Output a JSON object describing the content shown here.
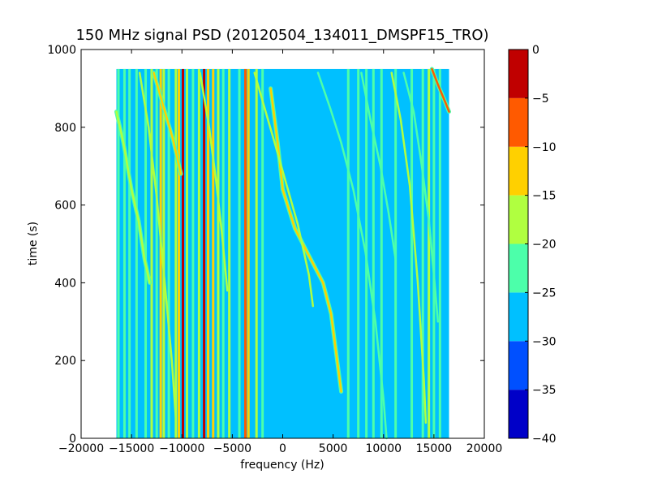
{
  "chart_data": {
    "type": "heatmap",
    "title": "150 MHz signal PSD (20120504_134011_DMSPF15_TRO)",
    "xlabel": "frequency (Hz)",
    "ylabel": "time (s)",
    "xlim": [
      -20000,
      20000
    ],
    "ylim": [
      0,
      1000
    ],
    "xticks": [
      -20000,
      -15000,
      -10000,
      -5000,
      0,
      5000,
      10000,
      15000,
      20000
    ],
    "xtick_labels": [
      "−20000",
      "−15000",
      "−10000",
      "−5000",
      "0",
      "5000",
      "10000",
      "15000",
      "20000"
    ],
    "yticks": [
      0,
      200,
      400,
      600,
      800,
      1000
    ],
    "ytick_labels": [
      "0",
      "200",
      "400",
      "600",
      "800",
      "1000"
    ],
    "data_extent": {
      "x": [
        -16500,
        16500
      ],
      "y": [
        0,
        950
      ]
    },
    "background_level": -28,
    "colorbar": {
      "range": [
        -40,
        0
      ],
      "levels": [
        -40,
        -35,
        -30,
        -25,
        -20,
        -15,
        -10,
        -5,
        0
      ],
      "tick_labels": [
        "−40",
        "−35",
        "−30",
        "−25",
        "−20",
        "−15",
        "−10",
        "−5",
        "0"
      ],
      "colors": [
        "#0000c8",
        "#0050ff",
        "#00c0ff",
        "#4cffaa",
        "#b0ff40",
        "#ffd000",
        "#ff5a00",
        "#c00000"
      ]
    },
    "vertical_lines": [
      {
        "x": -16300,
        "level": -22
      },
      {
        "x": -15700,
        "level": -22
      },
      {
        "x": -15200,
        "level": -22
      },
      {
        "x": -14500,
        "level": -21
      },
      {
        "x": -13600,
        "level": -22
      },
      {
        "x": -13000,
        "level": -20
      },
      {
        "x": -12500,
        "level": -22
      },
      {
        "x": -12100,
        "level": -12
      },
      {
        "x": -11800,
        "level": -20
      },
      {
        "x": -11300,
        "level": -22
      },
      {
        "x": -10600,
        "level": -18
      },
      {
        "x": -10300,
        "level": -12
      },
      {
        "x": -9900,
        "level": -2
      },
      {
        "x": -9500,
        "level": -20
      },
      {
        "x": -8900,
        "level": -22
      },
      {
        "x": -8300,
        "level": -20
      },
      {
        "x": -7800,
        "level": -4
      },
      {
        "x": -7400,
        "level": -14
      },
      {
        "x": -6900,
        "level": -12
      },
      {
        "x": -6400,
        "level": -20
      },
      {
        "x": -5900,
        "level": -22
      },
      {
        "x": -5300,
        "level": -20
      },
      {
        "x": -4300,
        "level": -21
      },
      {
        "x": -3700,
        "level": -8
      },
      {
        "x": -3400,
        "level": -14
      },
      {
        "x": -2600,
        "level": -20
      },
      {
        "x": -2000,
        "level": -22
      },
      {
        "x": 6500,
        "level": -22
      },
      {
        "x": 7500,
        "level": -22
      },
      {
        "x": 8300,
        "level": -23
      },
      {
        "x": 9000,
        "level": -22
      },
      {
        "x": 9800,
        "level": -23
      },
      {
        "x": 11200,
        "level": -22
      },
      {
        "x": 12800,
        "level": -21
      },
      {
        "x": 13900,
        "level": -22
      },
      {
        "x": 14500,
        "level": -20
      },
      {
        "x": 15000,
        "level": -22
      },
      {
        "x": 15600,
        "level": -23
      }
    ],
    "curves": [
      {
        "name": "",
        "level": -12,
        "points": [
          [
            -1200,
            900
          ],
          [
            -500,
            760
          ],
          [
            0,
            640
          ],
          [
            1200,
            540
          ],
          [
            2800,
            460
          ],
          [
            4000,
            400
          ],
          [
            4800,
            320
          ],
          [
            5400,
            200
          ],
          [
            5800,
            120
          ]
        ]
      },
      {
        "name": "",
        "level": -20,
        "points": [
          [
            -2800,
            940
          ],
          [
            -1800,
            850
          ],
          [
            -800,
            760
          ],
          [
            400,
            650
          ],
          [
            1500,
            550
          ],
          [
            2600,
            420
          ],
          [
            3000,
            340
          ]
        ]
      },
      {
        "name": "",
        "level": -22,
        "points": [
          [
            3500,
            940
          ],
          [
            4700,
            850
          ],
          [
            5800,
            760
          ],
          [
            7000,
            640
          ],
          [
            8200,
            480
          ],
          [
            9200,
            300
          ],
          [
            10000,
            100
          ],
          [
            10300,
            0
          ]
        ]
      },
      {
        "name": "",
        "level": -18,
        "points": [
          [
            -16500,
            840
          ],
          [
            -15800,
            760
          ],
          [
            -15000,
            640
          ],
          [
            -14300,
            560
          ],
          [
            -13700,
            460
          ],
          [
            -13200,
            400
          ]
        ]
      },
      {
        "name": "",
        "level": -20,
        "points": [
          [
            -14200,
            940
          ],
          [
            -13300,
            800
          ],
          [
            -12500,
            620
          ],
          [
            -11700,
            400
          ],
          [
            -11000,
            200
          ],
          [
            -10600,
            50
          ]
        ]
      },
      {
        "name": "",
        "level": -14,
        "points": [
          [
            -12800,
            940
          ],
          [
            -11900,
            860
          ],
          [
            -10900,
            770
          ],
          [
            -10100,
            680
          ]
        ]
      },
      {
        "name": "",
        "level": -20,
        "points": [
          [
            -8200,
            940
          ],
          [
            -7300,
            800
          ],
          [
            -6600,
            660
          ],
          [
            -6000,
            520
          ],
          [
            -5500,
            380
          ]
        ]
      },
      {
        "name": "",
        "level": -20,
        "points": [
          [
            10800,
            940
          ],
          [
            11700,
            820
          ],
          [
            12600,
            650
          ],
          [
            13400,
            400
          ],
          [
            14000,
            150
          ],
          [
            14200,
            40
          ]
        ]
      },
      {
        "name": "",
        "level": -22,
        "points": [
          [
            12000,
            940
          ],
          [
            13000,
            840
          ],
          [
            13800,
            700
          ],
          [
            14500,
            560
          ],
          [
            15000,
            420
          ],
          [
            15400,
            300
          ]
        ]
      },
      {
        "name": "",
        "level": -10,
        "points": [
          [
            14800,
            950
          ],
          [
            15400,
            910
          ],
          [
            16200,
            860
          ],
          [
            16500,
            840
          ]
        ]
      },
      {
        "name": "",
        "level": -24,
        "points": [
          [
            7800,
            940
          ],
          [
            8700,
            820
          ],
          [
            9700,
            700
          ],
          [
            10500,
            580
          ],
          [
            11200,
            460
          ]
        ]
      }
    ]
  }
}
